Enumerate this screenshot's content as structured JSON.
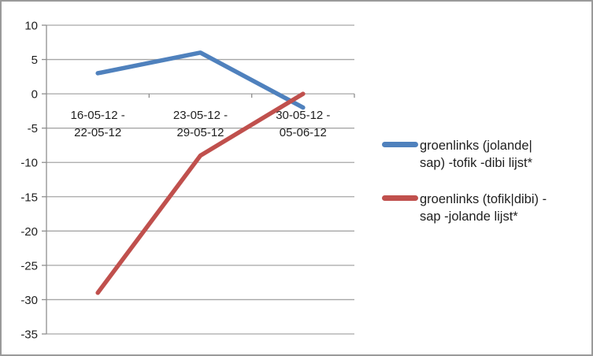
{
  "chart_data": {
    "type": "line",
    "title": "",
    "xlabel": "",
    "ylabel": "",
    "categories": [
      "16-05-12 - 22-05-12",
      "23-05-12 - 29-05-12",
      "30-05-12 - 05-06-12"
    ],
    "category_label_lines": [
      [
        "16-05-12 -",
        "22-05-12"
      ],
      [
        "23-05-12 -",
        "29-05-12"
      ],
      [
        "30-05-12 -",
        "05-06-12"
      ]
    ],
    "series": [
      {
        "name": "groenlinks (jolande|sap) -tofik -dibi lijst*",
        "color": "#4f81bd",
        "values": [
          3,
          6,
          -2
        ]
      },
      {
        "name": "groenlinks (tofik|dibi) -sap -jolande lijst*",
        "color": "#c0504d",
        "values": [
          -29,
          -9,
          0
        ]
      }
    ],
    "ylim": [
      -35,
      10
    ],
    "yticks": [
      10,
      5,
      0,
      -5,
      -10,
      -15,
      -20,
      -25,
      -30,
      -35
    ],
    "grid": true,
    "legend_position": "right"
  },
  "legend": {
    "items": [
      {
        "lines": [
          "groenlinks (jolande|",
          "sap) -tofik -dibi lijst*"
        ],
        "color": "#4f81bd"
      },
      {
        "lines": [
          "groenlinks (tofik|dibi) -",
          "sap -jolande lijst*"
        ],
        "color": "#c0504d"
      }
    ]
  },
  "colors": {
    "gridline": "#a6a6a6",
    "axis": "#8e8e8e",
    "text": "#1f1f1f",
    "border": "#9a9a9a",
    "background": "#ffffff"
  }
}
